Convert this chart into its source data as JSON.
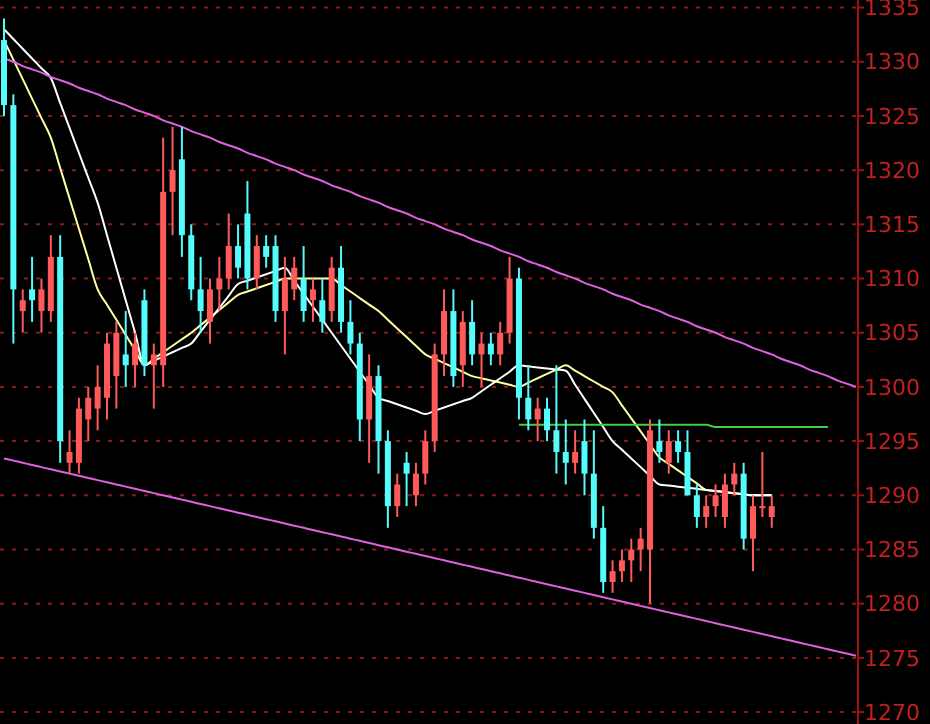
{
  "chart_data": {
    "type": "candlestick",
    "tick_labels": "y",
    "grid": "y",
    "ylim": [
      1268.9,
      1335.7
    ],
    "yticks": [
      1270,
      1275,
      1280,
      1285,
      1290,
      1295,
      1300,
      1305,
      1310,
      1315,
      1320,
      1325,
      1330,
      1335
    ],
    "categories": [
      null,
      null,
      null,
      null,
      null,
      null,
      null,
      null,
      null,
      null,
      null,
      null,
      null,
      null,
      null,
      null,
      null,
      null,
      null,
      null,
      null,
      null,
      null,
      null,
      null,
      null,
      null,
      null,
      null,
      null,
      null,
      null,
      null,
      null,
      null,
      null,
      null,
      null,
      null,
      null,
      null,
      null,
      null,
      null,
      null,
      null,
      null,
      null,
      null,
      null,
      null,
      null,
      null,
      null,
      null,
      null,
      null,
      null,
      null,
      null,
      null,
      null,
      null,
      null,
      null,
      null,
      null,
      null,
      null,
      null,
      null,
      null,
      null,
      null,
      null,
      null,
      null,
      null,
      null,
      null,
      null,
      null,
      null,
      null,
      null,
      null,
      null,
      null,
      null,
      null,
      null,
      null
    ],
    "ohlc": [
      [
        1332,
        1334,
        1325,
        1326
      ],
      [
        1326,
        1327,
        1304,
        1309
      ],
      [
        1307,
        1309,
        1305,
        1308
      ],
      [
        1309,
        1312,
        1306,
        1308
      ],
      [
        1307,
        1310,
        1305,
        1309
      ],
      [
        1307,
        1314,
        1306,
        1312
      ],
      [
        1312,
        1314,
        1293,
        1295
      ],
      [
        1293,
        1296,
        1292,
        1294
      ],
      [
        1293,
        1299,
        1292,
        1298
      ],
      [
        1297,
        1300,
        1295,
        1299
      ],
      [
        1298,
        1302,
        1296,
        1300
      ],
      [
        1299,
        1305,
        1297,
        1304
      ],
      [
        1301,
        1306,
        1298,
        1305
      ],
      [
        1303,
        1307,
        1300,
        1302
      ],
      [
        1302,
        1305,
        1300,
        1304
      ],
      [
        1308,
        1309,
        1301,
        1302
      ],
      [
        1302,
        1304,
        1298,
        1303
      ],
      [
        1302,
        1323,
        1300,
        1318
      ],
      [
        1318,
        1324,
        1314,
        1320
      ],
      [
        1321,
        1324,
        1312,
        1314
      ],
      [
        1314,
        1315,
        1308,
        1309
      ],
      [
        1309,
        1312,
        1305,
        1307
      ],
      [
        1306,
        1310,
        1304,
        1309
      ],
      [
        1309,
        1312,
        1307,
        1310
      ],
      [
        1310,
        1316,
        1309,
        1313
      ],
      [
        1313,
        1315,
        1310,
        1311
      ],
      [
        1316,
        1319,
        1309,
        1310
      ],
      [
        1310,
        1314,
        1309,
        1313
      ],
      [
        1313,
        1314,
        1311,
        1312
      ],
      [
        1313,
        1314,
        1306,
        1307
      ],
      [
        1307,
        1312,
        1303,
        1310
      ],
      [
        1309,
        1312,
        1308,
        1311
      ],
      [
        1310,
        1313,
        1306,
        1307
      ],
      [
        1308,
        1310,
        1306,
        1309
      ],
      [
        1308,
        1310,
        1305,
        1306
      ],
      [
        1307,
        1312,
        1306,
        1311
      ],
      [
        1311,
        1313,
        1305,
        1306
      ],
      [
        1306,
        1308,
        1303,
        1304
      ],
      [
        1304,
        1305,
        1295,
        1297
      ],
      [
        1297,
        1303,
        1293,
        1301
      ],
      [
        1301,
        1302,
        1292,
        1295
      ],
      [
        1295,
        1296,
        1287,
        1289
      ],
      [
        1289,
        1292,
        1288,
        1291
      ],
      [
        1293,
        1294,
        1289,
        1292
      ],
      [
        1290,
        1293,
        1289,
        1292
      ],
      [
        1292,
        1296,
        1291,
        1295
      ],
      [
        1295,
        1304,
        1294,
        1303
      ],
      [
        1303,
        1309,
        1301,
        1307
      ],
      [
        1307,
        1309,
        1300,
        1301
      ],
      [
        1302,
        1307,
        1300,
        1306
      ],
      [
        1306,
        1308,
        1302,
        1303
      ],
      [
        1303,
        1305,
        1300,
        1304
      ],
      [
        1304,
        1305,
        1302,
        1303
      ],
      [
        1303,
        1306,
        1302,
        1305
      ],
      [
        1305,
        1312,
        1304,
        1310
      ],
      [
        1310,
        1311,
        1297,
        1299
      ],
      [
        1299,
        1302,
        1296,
        1297
      ],
      [
        1297,
        1299,
        1295,
        1298
      ],
      [
        1298,
        1299,
        1295,
        1296
      ],
      [
        1296,
        1302,
        1292,
        1294
      ],
      [
        1294,
        1297,
        1291,
        1293
      ],
      [
        1293,
        1296,
        1292,
        1294
      ],
      [
        1295,
        1297,
        1290,
        1292
      ],
      [
        1292,
        1296,
        1286,
        1287
      ],
      [
        1287,
        1289,
        1281,
        1282
      ],
      [
        1282,
        1284,
        1281,
        1283
      ],
      [
        1283,
        1285,
        1282,
        1284
      ],
      [
        1284,
        1286,
        1282,
        1285
      ],
      [
        1285,
        1287,
        1283,
        1286
      ],
      [
        1285,
        1297,
        1280,
        1296
      ],
      [
        1295,
        1297,
        1293,
        1294
      ],
      [
        1293,
        1296,
        1292,
        1295
      ],
      [
        1295,
        1296,
        1293,
        1294
      ],
      [
        1294,
        1296,
        1290,
        1290
      ],
      [
        1290,
        1291,
        1287,
        1288
      ],
      [
        1288,
        1290,
        1287,
        1289
      ],
      [
        1289,
        1291,
        1288,
        1290
      ],
      [
        1288,
        1292,
        1287,
        1291
      ],
      [
        1291,
        1293,
        1290,
        1292
      ],
      [
        1292,
        1293,
        1285,
        1286
      ],
      [
        1286,
        1290,
        1283,
        1289
      ],
      [
        1289,
        1294,
        1288,
        1289
      ],
      [
        1288,
        1290,
        1287,
        1289
      ],
      null,
      null,
      null,
      null,
      null,
      null,
      null,
      null,
      null
    ],
    "series": [
      {
        "type": "line",
        "color": "#ffffa0",
        "values": [
          1332,
          1330.2,
          1328.4,
          1326.6,
          1324.8,
          1323,
          1320.2,
          1317.4,
          1314.6,
          1311.8,
          1309,
          1307.6,
          1306.2,
          1304.8,
          1303.4,
          1302,
          1302.6,
          1303.2,
          1303.8,
          1304.4,
          1305,
          1305.7,
          1306.4,
          1307.1,
          1307.8,
          1308.5,
          1308.8,
          1309.1,
          1309.4,
          1309.7,
          1310,
          1310,
          1310,
          1310,
          1310,
          1310,
          1309.4,
          1308.8,
          1308.2,
          1307.6,
          1307,
          1306.2,
          1305.4,
          1304.6,
          1303.8,
          1303,
          1302.6,
          1302.2,
          1301.8,
          1301.4,
          1301,
          1300.8,
          1300.6,
          1300.4,
          1300.2,
          1300,
          1300.4,
          1300.8,
          1301.2,
          1301.6,
          1302,
          1301.5,
          1301,
          1300.5,
          1300,
          1299.5,
          1298.3,
          1297.1,
          1295.9,
          1294.7,
          1293.5,
          1292.9,
          1292.3,
          1291.7,
          1291.1,
          1290.5,
          1290.4,
          1290.3,
          1290.2,
          1290.1,
          1290,
          1290,
          1290,
          null,
          null,
          null,
          null,
          null,
          null,
          null,
          null,
          null
        ]
      },
      {
        "type": "line",
        "color": "#ffffff",
        "values": [
          1333,
          1332.1,
          1331.2,
          1330.3,
          1329.4,
          1328.5,
          1326.2,
          1323.9,
          1321.6,
          1319.3,
          1317,
          1314,
          1311,
          1308,
          1305,
          1302,
          1302.4,
          1302.8,
          1303.2,
          1303.6,
          1304,
          1305.1,
          1306.2,
          1307.3,
          1308.4,
          1309.5,
          1309.8,
          1310.1,
          1310.4,
          1310.7,
          1311,
          1309.8,
          1308.6,
          1307.4,
          1306.2,
          1305,
          1303.8,
          1302.6,
          1301.4,
          1300.2,
          1299,
          1298.7,
          1298.4,
          1298.1,
          1297.8,
          1297.5,
          1297.8,
          1298.1,
          1298.4,
          1298.7,
          1299,
          1299.6,
          1300.2,
          1300.8,
          1301.4,
          1302,
          1301.9,
          1301.8,
          1301.7,
          1301.6,
          1301.5,
          1300.2,
          1298.9,
          1297.6,
          1296.3,
          1295,
          1294.2,
          1293.4,
          1292.6,
          1291.8,
          1291,
          1290.9,
          1290.8,
          1290.7,
          1290.6,
          1290.5,
          1290.4,
          1290.3,
          1290.2,
          1290.1,
          1290,
          1290,
          1290,
          null,
          null,
          null,
          null,
          null,
          null,
          null,
          null,
          null
        ]
      },
      {
        "type": "line",
        "color": "#e060e0",
        "values": [
          1330.3,
          1330,
          1329.6,
          1329.3,
          1329,
          1328.6,
          1328.3,
          1328,
          1327.6,
          1327.3,
          1327,
          1326.6,
          1326.3,
          1326,
          1325.6,
          1325.3,
          1325,
          1324.6,
          1324.3,
          1324,
          1323.6,
          1323.3,
          1323,
          1322.6,
          1322.3,
          1322,
          1321.6,
          1321.3,
          1321,
          1320.6,
          1320.3,
          1320,
          1319.6,
          1319.3,
          1319,
          1318.6,
          1318.3,
          1318,
          1317.6,
          1317.3,
          1317,
          1316.6,
          1316.3,
          1316,
          1315.6,
          1315.3,
          1315,
          1314.6,
          1314.3,
          1314,
          1313.6,
          1313.3,
          1313,
          1312.6,
          1312.3,
          1312,
          1311.6,
          1311.3,
          1311,
          1310.6,
          1310.3,
          1310,
          1309.6,
          1309.3,
          1309,
          1308.6,
          1308.3,
          1308,
          1307.6,
          1307.3,
          1307,
          1306.6,
          1306.3,
          1306,
          1305.6,
          1305.3,
          1305,
          1304.6,
          1304.3,
          1304,
          1303.6,
          1303.3,
          1303,
          1302.6,
          1302.3,
          1302,
          1301.6,
          1301.3,
          1301,
          1300.6,
          1300.3,
          1300
        ]
      },
      {
        "type": "line",
        "color": "#e060e0",
        "values": [
          1293.4,
          1293.2,
          1293,
          1292.8,
          1292.6,
          1292.4,
          1292.2,
          1292,
          1291.8,
          1291.6,
          1291.4,
          1291.2,
          1291,
          1290.8,
          1290.6,
          1290.4,
          1290.2,
          1290,
          1289.8,
          1289.6,
          1289.4,
          1289.2,
          1289,
          1288.8,
          1288.6,
          1288.4,
          1288.2,
          1288,
          1287.8,
          1287.6,
          1287.4,
          1287.2,
          1287,
          1286.8,
          1286.6,
          1286.4,
          1286.2,
          1286,
          1285.8,
          1285.6,
          1285.4,
          1285.2,
          1285,
          1284.8,
          1284.6,
          1284.4,
          1284.2,
          1284,
          1283.8,
          1283.6,
          1283.4,
          1283.2,
          1283,
          1282.8,
          1282.6,
          1282.4,
          1282.2,
          1282,
          1281.8,
          1281.6,
          1281.4,
          1281.2,
          1281,
          1280.8,
          1280.6,
          1280.4,
          1280.2,
          1280,
          1279.8,
          1279.6,
          1279.4,
          1279.2,
          1279,
          1278.8,
          1278.6,
          1278.4,
          1278.2,
          1278,
          1277.8,
          1277.6,
          1277.4,
          1277.2,
          1277,
          1276.8,
          1276.6,
          1276.4,
          1276.2,
          1276,
          1275.8,
          1275.6,
          1275.4,
          1275.2
        ]
      },
      {
        "type": "line",
        "color": "#40d040",
        "values": [
          null,
          null,
          null,
          null,
          null,
          null,
          null,
          null,
          null,
          null,
          null,
          null,
          null,
          null,
          null,
          null,
          null,
          null,
          null,
          null,
          null,
          null,
          null,
          null,
          null,
          null,
          null,
          null,
          null,
          null,
          null,
          null,
          null,
          null,
          null,
          null,
          null,
          null,
          null,
          null,
          null,
          null,
          null,
          null,
          null,
          null,
          null,
          null,
          null,
          null,
          null,
          null,
          null,
          null,
          null,
          1296.5,
          1296.5,
          1296.5,
          1296.5,
          1296.5,
          1296.5,
          1296.5,
          1296.5,
          1296.5,
          1296.5,
          1296.5,
          1296.5,
          1296.5,
          1296.5,
          1296.5,
          1296.5,
          1296.5,
          1296.5,
          1296.5,
          1296.5,
          1296.5,
          1296.3,
          1296.3,
          1296.3,
          1296.3,
          1296.3,
          1296.3,
          1296.3,
          1296.3,
          1296.3,
          1296.3,
          1296.3,
          1296.3,
          1296.3,
          null,
          null,
          null
        ]
      }
    ]
  }
}
